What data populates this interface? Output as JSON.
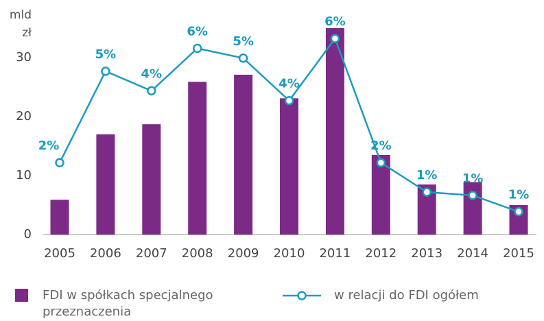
{
  "chart_data": {
    "type": "bar",
    "y_label": [
      "mld",
      "zł"
    ],
    "categories": [
      "2005",
      "2006",
      "2007",
      "2008",
      "2009",
      "2010",
      "2011",
      "2012",
      "2013",
      "2014",
      "2015"
    ],
    "series": [
      {
        "name": "FDI w spółkach specjalnego przeznaczenia",
        "type": "bar",
        "color": "#7b2a86",
        "values": [
          5.9,
          17,
          18.7,
          25.9,
          27.1,
          23.1,
          35,
          13.5,
          8.5,
          8.9,
          5.0
        ]
      },
      {
        "name": "w relacji do FDI ogółem",
        "type": "line",
        "axis": "y2",
        "color": "#1a9cc0",
        "values": [
          2.2,
          5.0,
          4.4,
          5.7,
          5.4,
          4.1,
          6.0,
          2.2,
          1.3,
          1.2,
          0.7
        ],
        "value_labels": [
          "2%",
          "5%",
          "4%",
          "6%",
          "5%",
          "4%",
          "6%",
          "2%",
          "1%",
          "1%",
          "1%"
        ]
      }
    ],
    "ylim": [
      0,
      36
    ],
    "yticks": [
      0,
      10,
      20,
      30
    ],
    "y2lim": [
      0,
      6.5
    ],
    "grid": false,
    "legend": "bottom"
  }
}
